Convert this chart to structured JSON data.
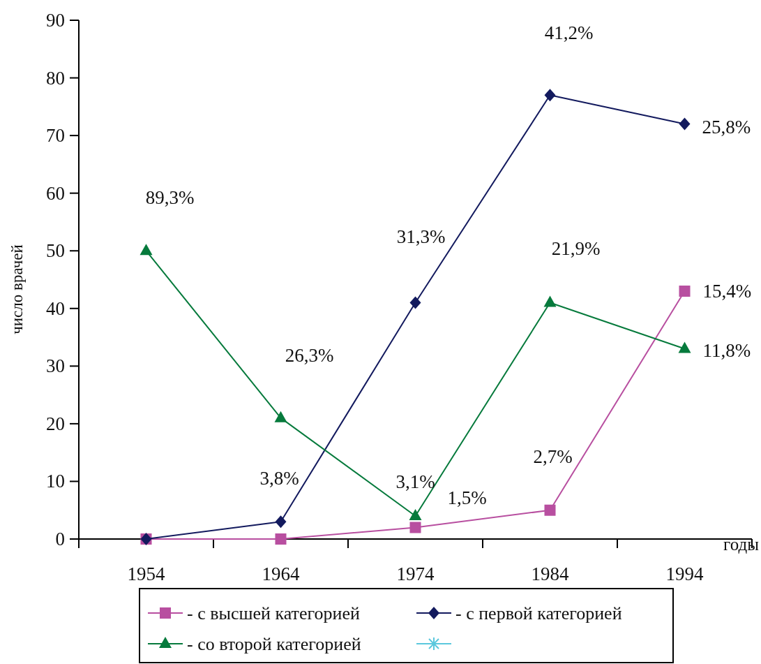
{
  "chart_data": {
    "type": "line",
    "categories": [
      "1954",
      "1964",
      "1974",
      "1984",
      "1994"
    ],
    "series": [
      {
        "name": "- с высшей категорией",
        "color": "#b84fa0",
        "marker": "square",
        "values": [
          0,
          0,
          2,
          5,
          43
        ]
      },
      {
        "name": "- с первой категорией",
        "color": "#131a5e",
        "marker": "diamond",
        "values": [
          0,
          3,
          41,
          77,
          72
        ]
      },
      {
        "name": "- со второй категорией",
        "color": "#067a3c",
        "marker": "triangle",
        "values": [
          50,
          21,
          4,
          41,
          33
        ]
      },
      {
        "color": "#5bc8dd",
        "marker": "cross",
        "values": [
          null,
          null,
          null,
          null,
          null
        ]
      }
    ],
    "ylim": [
      0,
      90
    ],
    "yticks": [
      0,
      10,
      20,
      30,
      40,
      50,
      60,
      70,
      80,
      90
    ],
    "xlabel": "годы",
    "ylabel": "число врачей",
    "legend": "bottom",
    "annotations": [
      {
        "text": "89,3%",
        "x": "1954",
        "y": 50
      },
      {
        "text": "26,3%",
        "x": "1964",
        "y": 21
      },
      {
        "text": "3,8%",
        "x": "1964",
        "y": 3
      },
      {
        "text": "31,3%",
        "x": "1974",
        "y": 41
      },
      {
        "text": "3,1%",
        "x": "1974",
        "y": 4
      },
      {
        "text": "1,5%",
        "x": "1974",
        "y": 2
      },
      {
        "text": "41,2%",
        "x": "1984",
        "y": 77
      },
      {
        "text": "21,9%",
        "x": "1984",
        "y": 41
      },
      {
        "text": "2,7%",
        "x": "1984",
        "y": 5
      },
      {
        "text": "25,8%",
        "x": "1994",
        "y": 72
      },
      {
        "text": "15,4%",
        "x": "1994",
        "y": 43
      },
      {
        "text": "11,8%",
        "x": "1994",
        "y": 33
      }
    ]
  }
}
